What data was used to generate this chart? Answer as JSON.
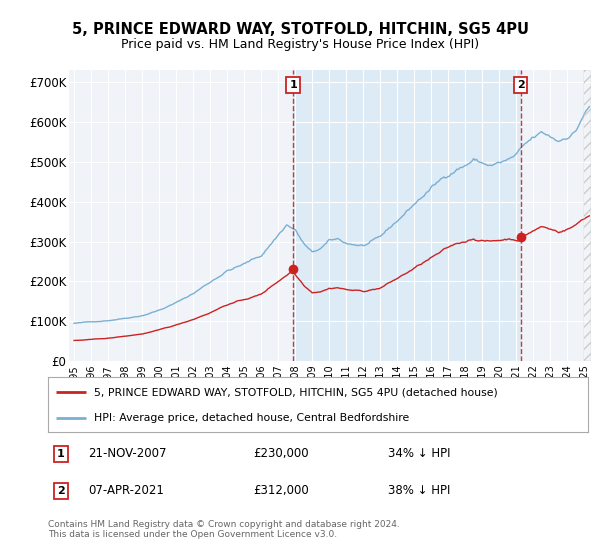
{
  "title": "5, PRINCE EDWARD WAY, STOTFOLD, HITCHIN, SG5 4PU",
  "subtitle": "Price paid vs. HM Land Registry's House Price Index (HPI)",
  "ylabel_ticks": [
    "£0",
    "£100K",
    "£200K",
    "£300K",
    "£400K",
    "£500K",
    "£600K",
    "£700K"
  ],
  "ytick_values": [
    0,
    100000,
    200000,
    300000,
    400000,
    500000,
    600000,
    700000
  ],
  "ylim": [
    0,
    730000
  ],
  "legend_line1": "5, PRINCE EDWARD WAY, STOTFOLD, HITCHIN, SG5 4PU (detached house)",
  "legend_line2": "HPI: Average price, detached house, Central Bedfordshire",
  "marker1_date": "21-NOV-2007",
  "marker1_price": "£230,000",
  "marker1_hpi": "34% ↓ HPI",
  "marker2_date": "07-APR-2021",
  "marker2_price": "£312,000",
  "marker2_hpi": "38% ↓ HPI",
  "footnote": "Contains HM Land Registry data © Crown copyright and database right 2024.\nThis data is licensed under the Open Government Licence v3.0.",
  "hpi_color": "#7aafd4",
  "hpi_fill_color": "#daeaf6",
  "price_color": "#cc2222",
  "vline_color": "#cc2222",
  "background_color": "#f0f4f8",
  "sale1_x": 2007.88,
  "sale1_y": 230000,
  "sale2_x": 2021.27,
  "sale2_y": 312000,
  "xlim_left": 1994.7,
  "xlim_right": 2025.4,
  "xtick_years": [
    1995,
    1996,
    1997,
    1998,
    1999,
    2000,
    2001,
    2002,
    2003,
    2004,
    2005,
    2006,
    2007,
    2008,
    2009,
    2010,
    2011,
    2012,
    2013,
    2014,
    2015,
    2016,
    2017,
    2018,
    2019,
    2020,
    2021,
    2022,
    2023,
    2024,
    2025
  ]
}
